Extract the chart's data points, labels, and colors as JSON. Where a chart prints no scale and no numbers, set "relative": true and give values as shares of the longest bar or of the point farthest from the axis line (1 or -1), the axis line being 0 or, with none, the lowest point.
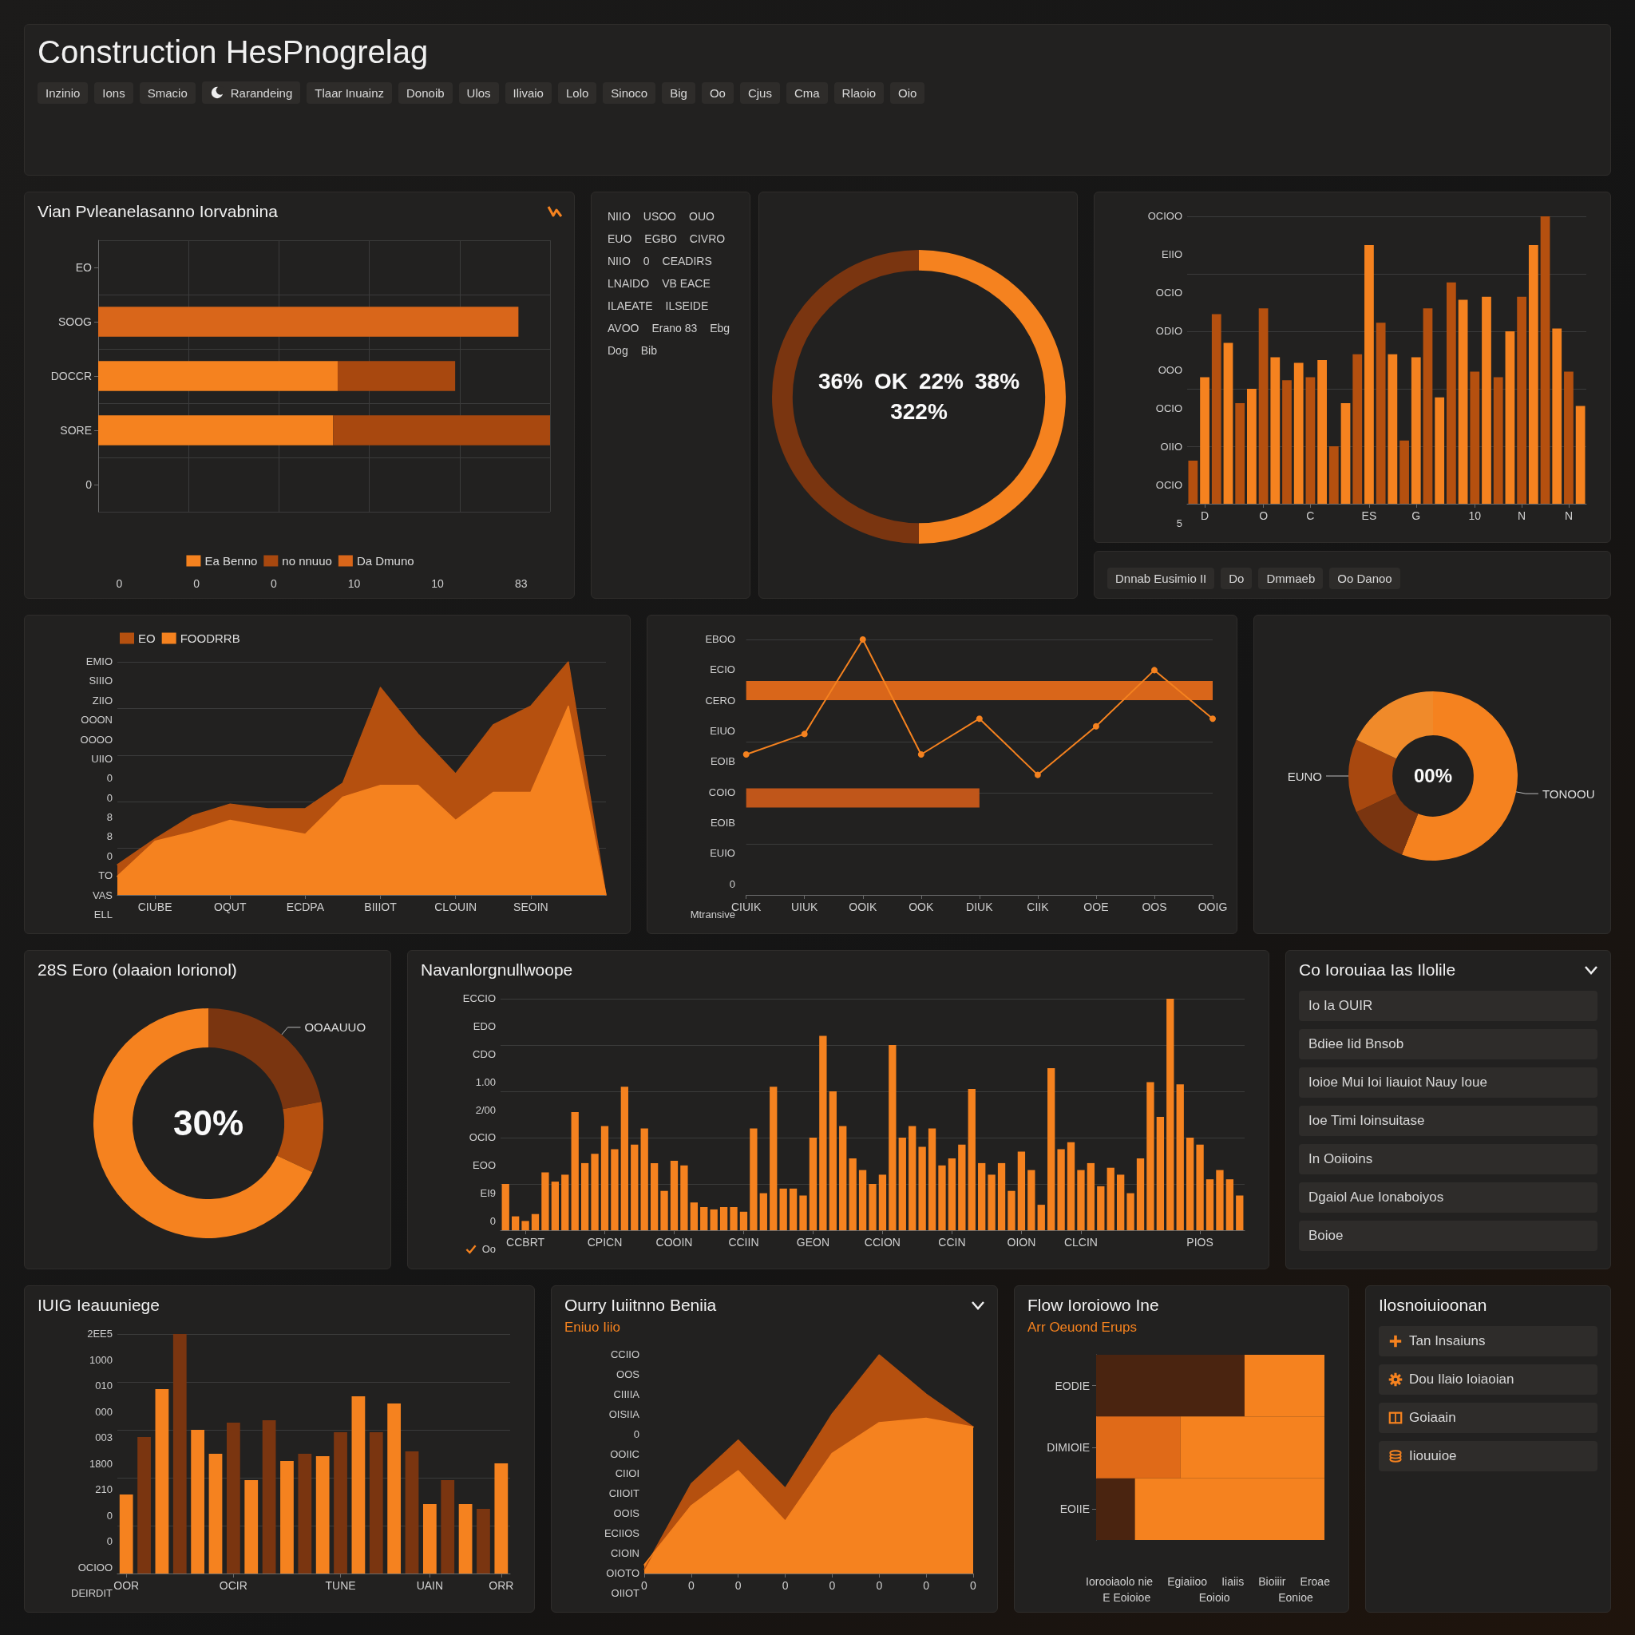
{
  "chart_data": [
    {
      "type": "other",
      "title": "Construction HesPnogrelag",
      "annotations": [
        "Inzinio",
        "Ions",
        "Smacio",
        "Rarandeing",
        "Tlaar Inuainz",
        "Donoib",
        "Ulos",
        "Ilivaio",
        "Lolo",
        "Sinoco",
        "Big",
        "Oo",
        "Cjus",
        "Cma",
        "Rlaoio",
        "Oio"
      ]
    },
    {
      "type": "bar",
      "orientation": "horizontal",
      "stacked": true,
      "relative": true,
      "title": "Vian Pvleanelasanno Iorvabnina",
      "categories": [
        "EO",
        "SOOG",
        "DOCCR",
        "SORE",
        "0"
      ],
      "series": [
        {
          "name": "Ea Benno",
          "color": "#f5821f",
          "values": [
            null,
            null,
            0.53,
            0.52,
            null
          ]
        },
        {
          "name": "no nnuuo",
          "color": "#a8480f",
          "values": [
            null,
            null,
            0.26,
            0.48,
            null
          ]
        },
        {
          "name": "Da Dmuno",
          "color": "#d9661a",
          "values": [
            null,
            0.93,
            null,
            null,
            null
          ]
        }
      ],
      "grid": true,
      "legend": "bottom",
      "annotations": [
        "0",
        "0",
        "0",
        "10",
        "10",
        "83"
      ]
    },
    {
      "type": "other",
      "annotations": [
        "NIIO",
        "USOO",
        "OUO",
        "EUO",
        "EGBO",
        "CIVRO",
        "NIIO",
        "0",
        "CEADIRS",
        "LNAIDO",
        "VB EACE",
        "ILAEATE",
        "ILSEIDE",
        "AVOO",
        "Erano 83",
        "Ebg",
        "Dog",
        "Bib"
      ]
    },
    {
      "type": "donut",
      "categories": [
        null,
        null
      ],
      "values": [
        50,
        50
      ],
      "colors": [
        "#f5821f",
        "#7a3510"
      ],
      "annotations": [
        "36%",
        "OK",
        "22%",
        "38%",
        "322%"
      ]
    },
    {
      "type": "bar",
      "relative": true,
      "categories": [
        null,
        "D",
        null,
        null,
        null,
        null,
        "O",
        null,
        null,
        null,
        "C",
        null,
        null,
        null,
        null,
        "ES",
        null,
        null,
        null,
        "G",
        null,
        null,
        null,
        null,
        "10",
        null,
        null,
        null,
        "N",
        null,
        null,
        null,
        "N",
        null
      ],
      "values": [
        0.15,
        0.44,
        0.66,
        0.56,
        0.35,
        0.4,
        0.68,
        0.51,
        0.43,
        0.49,
        0.44,
        0.5,
        0.2,
        0.35,
        0.52,
        0.9,
        0.63,
        0.52,
        0.22,
        0.51,
        0.68,
        0.37,
        0.77,
        0.71,
        0.46,
        0.72,
        0.44,
        0.6,
        0.72,
        0.9,
        1,
        0.61,
        0.46,
        0.34
      ],
      "colors": [
        "#b5500f",
        "#f5821f",
        "#b5500f",
        "#f5821f",
        "#b5500f",
        "#f5821f",
        "#b5500f",
        "#f5821f",
        "#b5500f",
        "#f5821f",
        "#b5500f",
        "#f5821f",
        "#b5500f",
        "#f5821f",
        "#b5500f",
        "#f5821f",
        "#b5500f",
        "#f5821f",
        "#b5500f",
        "#f5821f",
        "#b5500f",
        "#f5821f",
        "#b5500f",
        "#f5821f",
        "#b5500f",
        "#f5821f",
        "#b5500f",
        "#f5821f",
        "#b5500f",
        "#f5821f",
        "#b5500f",
        "#f5821f",
        "#b5500f",
        "#f5821f"
      ],
      "grid": "y",
      "annotations": [
        "OCIOO",
        "EIIO",
        "OCIO",
        "ODIO",
        "OOO",
        "OCIO",
        "OIIO",
        "OCIO",
        "5"
      ]
    },
    {
      "type": "other",
      "annotations": [
        "Dnnab Eusimio II",
        "Do",
        "Dmmaeb",
        "Oo Danoo"
      ]
    },
    {
      "type": "area",
      "relative": true,
      "categories": [
        null,
        "CIUBE",
        null,
        "OQUT",
        null,
        "ECDPA",
        null,
        "BIIIOT",
        null,
        "CLOUIN",
        null,
        "SEOIN",
        null,
        null
      ],
      "series": [
        {
          "name": "EO",
          "color": "#b5500f",
          "values": [
            0.13,
            0.24,
            0.34,
            0.39,
            0.37,
            0.37,
            0.48,
            0.89,
            0.69,
            0.52,
            0.73,
            0.81,
            1,
            0
          ]
        },
        {
          "name": "FOODRRB",
          "color": "#f5821f",
          "values": [
            0.08,
            0.23,
            0.27,
            0.32,
            0.29,
            0.26,
            0.42,
            0.47,
            0.47,
            0.32,
            0.44,
            0.44,
            0.81,
            0
          ]
        }
      ],
      "grid": "y",
      "legend": "top left",
      "annotations": [
        "EMIO",
        "SIIIO",
        "ZIIO",
        "OOON",
        "OOOO",
        "UIIO",
        "0",
        "0",
        "8",
        "8",
        "0",
        "TO",
        "VAS",
        "ELL"
      ]
    },
    {
      "type": "line",
      "relative": true,
      "categories": [
        "CIUIK",
        "UIUK",
        "OOIK",
        "OOK",
        "DIUK",
        "CIIK",
        "OOE",
        "OOS",
        "OOIG"
      ],
      "series": [
        {
          "color": "#d9661a",
          "marker": "none",
          "values": [
            0.8,
            0.8,
            0.8,
            0.8,
            0.8,
            0.8,
            0.8,
            0.8,
            0.8
          ]
        },
        {
          "color": "#c0561a",
          "marker": "none",
          "values": [
            0.38,
            0.38,
            0.38,
            0.38,
            0.38,
            null,
            null,
            null,
            null
          ]
        },
        {
          "color": "#f5821f",
          "values": [
            0.55,
            0.63,
            1,
            0.55,
            0.69,
            0.47,
            0.66,
            0.88,
            0.69
          ]
        }
      ],
      "marker": "circle",
      "grid": "y",
      "annotations": [
        "EBOO",
        "ECIO",
        "CERO",
        "EIUO",
        "EOIB",
        "COIO",
        "EOIB",
        "EUIO",
        "0",
        "Mtransive"
      ]
    },
    {
      "type": "donut",
      "categories": [
        "TONOOU",
        null,
        "EUNO",
        null
      ],
      "values": [
        56,
        12,
        14,
        18
      ],
      "colors": [
        "#f5821f",
        "#7a3510",
        "#a8480f",
        "#f08a2a"
      ],
      "annotations": [
        "00%"
      ]
    },
    {
      "type": "donut",
      "title": "28S Eoro (olaaion Iorionol)",
      "categories": [
        "OOAAUUO",
        null,
        null
      ],
      "values": [
        22,
        10,
        68
      ],
      "colors": [
        "#7a3510",
        "#b5500f",
        "#f5821f"
      ],
      "annotations": [
        "30%"
      ]
    },
    {
      "type": "bar",
      "relative": true,
      "title": "Navanlorgnullwoope",
      "categories": [
        null,
        null,
        "CCBRT",
        null,
        null,
        null,
        null,
        null,
        null,
        null,
        "CPICN",
        null,
        null,
        null,
        null,
        null,
        null,
        "COOIN",
        null,
        null,
        null,
        null,
        null,
        null,
        "CCIIN",
        null,
        null,
        null,
        null,
        null,
        null,
        "GEON",
        null,
        null,
        null,
        null,
        null,
        null,
        "CCION",
        null,
        null,
        null,
        null,
        null,
        null,
        "CCIN",
        null,
        null,
        null,
        null,
        null,
        null,
        "OION",
        null,
        null,
        null,
        null,
        null,
        "CLCIN",
        null,
        null,
        null,
        null,
        null,
        null,
        null,
        null,
        null,
        null,
        null,
        "PIOS",
        null,
        null,
        null,
        null
      ],
      "values": [
        0.2,
        0.06,
        0.04,
        0.07,
        0.25,
        0.21,
        0.24,
        0.51,
        0.29,
        0.33,
        0.45,
        0.35,
        0.62,
        0.37,
        0.44,
        0.29,
        0.17,
        0.3,
        0.28,
        0.12,
        0.1,
        0.09,
        0.1,
        0.1,
        0.08,
        0.44,
        0.16,
        0.62,
        0.18,
        0.18,
        0.15,
        0.4,
        0.84,
        0.6,
        0.45,
        0.31,
        0.26,
        0.2,
        0.24,
        0.8,
        0.4,
        0.45,
        0.36,
        0.44,
        0.28,
        0.31,
        0.37,
        0.61,
        0.29,
        0.24,
        0.29,
        0.17,
        0.34,
        0.26,
        0.11,
        0.7,
        0.35,
        0.38,
        0.26,
        0.29,
        0.19,
        0.27,
        0.24,
        0.16,
        0.31,
        0.64,
        0.49,
        1,
        0.63,
        0.4,
        0.37,
        0.22,
        0.26,
        0.22,
        0.15
      ],
      "color": "#f5821f",
      "grid": "y",
      "annotations": [
        "ECCIO",
        "EDO",
        "CDO",
        "1.00",
        "2/00",
        "OCIO",
        "EOO",
        "EI9",
        "0",
        "Oo"
      ]
    },
    {
      "type": "other",
      "title": "Co Iorouiaa Ias Ilolile",
      "annotations": [
        "Io Ia OUIR",
        "Bdiee Iid Bnsob",
        "Ioioe Mui Ioi Iiauiot Nauy Ioue",
        "Ioe Timi Ioinsuitase",
        "In Ooiioins",
        "Dgaiol Aue Ionaboiyos",
        "Boioe"
      ]
    },
    {
      "type": "bar",
      "relative": true,
      "title": "IUIG Ieauuniege",
      "categories": [
        "OOR",
        null,
        null,
        null,
        null,
        null,
        "OCIR",
        null,
        null,
        null,
        null,
        null,
        "TUNE",
        null,
        null,
        null,
        null,
        "UAIN",
        null,
        null,
        null,
        "ORR"
      ],
      "values": [
        0.33,
        0.57,
        0.77,
        1,
        0.6,
        0.5,
        0.63,
        0.39,
        0.64,
        0.47,
        0.5,
        0.49,
        0.59,
        0.74,
        0.59,
        0.71,
        0.51,
        0.29,
        0.39,
        0.29,
        0.27,
        0.46
      ],
      "colors": [
        "#f5821f",
        "#7a3510",
        "#f5821f",
        "#7a3510",
        "#f5821f",
        "#f5821f",
        "#7a3510",
        "#f5821f",
        "#7a3510",
        "#f5821f",
        "#7a3510",
        "#f5821f",
        "#7a3510",
        "#f5821f",
        "#7a3510",
        "#f5821f",
        "#7a3510",
        "#f5821f",
        "#7a3510",
        "#f5821f",
        "#7a3510",
        "#f5821f"
      ],
      "grid": "y",
      "annotations": [
        "2EE5",
        "1000",
        "010",
        "000",
        "003",
        "1800",
        "210",
        "0",
        "0",
        "OCIOO",
        "DEIRDIT"
      ]
    },
    {
      "type": "area",
      "relative": true,
      "title": "Ourry Iuiitnno Beniia",
      "subtitle": "Eniuo Iiio",
      "categories": [
        "0",
        "0",
        "0",
        "0",
        "0",
        "0",
        "0",
        "0"
      ],
      "series": [
        {
          "color": "#b5500f",
          "values": [
            0.02,
            0.41,
            0.61,
            0.39,
            0.73,
            1,
            0.82,
            0.67
          ]
        },
        {
          "color": "#f5821f",
          "values": [
            0.04,
            0.31,
            0.47,
            0.24,
            0.55,
            0.69,
            0.71,
            0.67
          ]
        }
      ],
      "annotations": [
        "CCIIO",
        "OOS",
        "CIIIIA",
        "OISIIA",
        "0",
        "OOIIC",
        "CIIOI",
        "CIIOIT",
        "OOIS",
        "ECIIOS",
        "CIOIN",
        "OIOTO",
        "OIIOT"
      ]
    },
    {
      "type": "bar",
      "orientation": "horizontal",
      "stacked": true,
      "relative": true,
      "title": "Flow Ioroiowo Ine",
      "subtitle": "Arr Oeuond Erups",
      "categories": [
        "EODIE",
        "DIMIOIE",
        "EOIIE"
      ],
      "series": [
        {
          "color": "#4a2410",
          "values": [
            0.65,
            null,
            0.17
          ]
        },
        {
          "color": "#e06a18",
          "values": [
            null,
            0.37,
            null
          ]
        },
        {
          "color": "#f5821f",
          "values": [
            0.35,
            0.63,
            0.83
          ]
        }
      ],
      "annotations": [
        "Iorooiaolo nie",
        "Egiaiioo",
        "Iiaiis",
        "Bioiiir",
        "Eroae",
        "E Eoioioe",
        "Eoioio",
        "Eonioe"
      ]
    },
    {
      "type": "other",
      "title": "Ilosnoiuioonan",
      "annotations": [
        "Tan Insaiuns",
        "Dou Ilaio Ioiaoian",
        "Goiaain",
        "Iiouuioe"
      ]
    }
  ]
}
